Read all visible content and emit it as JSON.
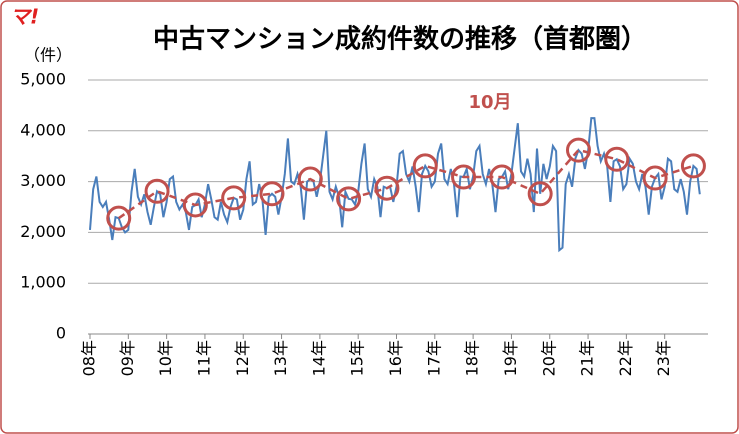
{
  "chart_data": {
    "type": "line",
    "title": "中古マンション成約件数の推移（首都圏）",
    "y_unit_label": "（件）",
    "logo": "マ!",
    "categories": [
      "08年",
      null,
      null,
      null,
      null,
      null,
      null,
      null,
      null,
      null,
      null,
      null,
      "09年",
      null,
      null,
      null,
      null,
      null,
      null,
      null,
      null,
      null,
      null,
      null,
      "10年",
      null,
      null,
      null,
      null,
      null,
      null,
      null,
      null,
      null,
      null,
      null,
      "11年",
      null,
      null,
      null,
      null,
      null,
      null,
      null,
      null,
      null,
      null,
      null,
      "12年",
      null,
      null,
      null,
      null,
      null,
      null,
      null,
      null,
      null,
      null,
      null,
      "13年",
      null,
      null,
      null,
      null,
      null,
      null,
      null,
      null,
      null,
      null,
      null,
      "14年",
      null,
      null,
      null,
      null,
      null,
      null,
      null,
      null,
      null,
      null,
      null,
      "15年",
      null,
      null,
      null,
      null,
      null,
      null,
      null,
      null,
      null,
      null,
      null,
      "16年",
      null,
      null,
      null,
      null,
      null,
      null,
      null,
      null,
      null,
      null,
      null,
      "17年",
      null,
      null,
      null,
      null,
      null,
      null,
      null,
      null,
      null,
      null,
      null,
      "18年",
      null,
      null,
      null,
      null,
      null,
      null,
      null,
      null,
      null,
      null,
      null,
      "19年",
      null,
      null,
      null,
      null,
      null,
      null,
      null,
      null,
      null,
      null,
      null,
      "20年",
      null,
      null,
      null,
      null,
      null,
      null,
      null,
      null,
      null,
      null,
      null,
      "21年",
      null,
      null,
      null,
      null,
      null,
      null,
      null,
      null,
      null,
      null,
      null,
      "22年",
      null,
      null,
      null,
      null,
      null,
      null,
      null,
      null,
      null,
      null,
      null,
      "23年",
      null,
      null,
      null,
      null,
      null,
      null,
      null,
      null,
      null,
      null,
      null
    ],
    "series": [
      {
        "color": "#4a7ebb",
        "values": [
          2050,
          2850,
          3100,
          2600,
          2500,
          2600,
          2250,
          1850,
          2300,
          2280,
          2100,
          2000,
          2050,
          2800,
          3250,
          2700,
          2550,
          2750,
          2400,
          2150,
          2500,
          2810,
          2750,
          2300,
          2600,
          3050,
          3100,
          2600,
          2450,
          2550,
          2400,
          2050,
          2500,
          2540,
          2650,
          2300,
          2550,
          2950,
          2650,
          2300,
          2250,
          2600,
          2350,
          2200,
          2500,
          2680,
          2650,
          2250,
          2450,
          3050,
          3400,
          2550,
          2600,
          2950,
          2650,
          1950,
          2700,
          2760,
          2700,
          2350,
          2700,
          3150,
          3850,
          3000,
          2950,
          3150,
          2900,
          2250,
          3000,
          3050,
          3000,
          2700,
          3000,
          3500,
          4000,
          2800,
          2650,
          2900,
          2700,
          2100,
          2800,
          2660,
          2650,
          2550,
          2800,
          3350,
          3750,
          2850,
          2700,
          3050,
          2900,
          2300,
          2900,
          2870,
          2900,
          2600,
          2900,
          3550,
          3600,
          3150,
          3000,
          3300,
          2900,
          2400,
          3150,
          3310,
          3200,
          2900,
          3000,
          3550,
          3750,
          3050,
          2950,
          3250,
          2950,
          2300,
          3100,
          3090,
          3250,
          2850,
          3100,
          3600,
          3700,
          3150,
          2950,
          3250,
          2950,
          2400,
          3050,
          3090,
          3200,
          2850,
          3150,
          3650,
          4150,
          3200,
          3100,
          3450,
          3150,
          2400,
          3650,
          2760,
          3350,
          3050,
          3300,
          3700,
          3600,
          1650,
          1700,
          2950,
          3150,
          2900,
          3450,
          3620,
          3550,
          3250,
          3600,
          4250,
          4250,
          3700,
          3400,
          3550,
          3300,
          2600,
          3400,
          3440,
          3300,
          2850,
          2950,
          3450,
          3350,
          3000,
          2850,
          3150,
          2900,
          2350,
          2900,
          3070,
          3150,
          2650,
          2900,
          3450,
          3400,
          2850,
          2800,
          3050,
          2800,
          2350,
          3000,
          3310,
          3250,
          2750
        ]
      },
      {
        "name": "10月",
        "color": "#c0504d",
        "style": "dashed-circles",
        "values": [
          null,
          null,
          null,
          null,
          null,
          null,
          null,
          null,
          null,
          2280,
          null,
          null,
          null,
          null,
          null,
          null,
          null,
          null,
          null,
          null,
          null,
          2810,
          null,
          null,
          null,
          null,
          null,
          null,
          null,
          null,
          null,
          null,
          null,
          2540,
          null,
          null,
          null,
          null,
          null,
          null,
          null,
          null,
          null,
          null,
          null,
          2680,
          null,
          null,
          null,
          null,
          null,
          null,
          null,
          null,
          null,
          null,
          null,
          2760,
          null,
          null,
          null,
          null,
          null,
          null,
          null,
          null,
          null,
          null,
          null,
          3050,
          null,
          null,
          null,
          null,
          null,
          null,
          null,
          null,
          null,
          null,
          null,
          2660,
          null,
          null,
          null,
          null,
          null,
          null,
          null,
          null,
          null,
          null,
          null,
          2870,
          null,
          null,
          null,
          null,
          null,
          null,
          null,
          null,
          null,
          null,
          null,
          3310,
          null,
          null,
          null,
          null,
          null,
          null,
          null,
          null,
          null,
          null,
          null,
          3090,
          null,
          null,
          null,
          null,
          null,
          null,
          null,
          null,
          null,
          null,
          null,
          3090,
          null,
          null,
          null,
          null,
          null,
          null,
          null,
          null,
          null,
          null,
          null,
          2760,
          null,
          null,
          null,
          null,
          null,
          null,
          null,
          null,
          null,
          null,
          null,
          3620,
          null,
          null,
          null,
          null,
          null,
          null,
          null,
          null,
          null,
          null,
          null,
          3440,
          null,
          null,
          null,
          null,
          null,
          null,
          null,
          null,
          null,
          null,
          null,
          3070,
          null,
          null,
          null,
          null,
          null,
          null,
          null,
          null,
          null,
          null,
          null,
          3310,
          null,
          null
        ]
      }
    ],
    "ylim": [
      0,
      5000
    ],
    "yticks": [
      0,
      {
        "value": 1000,
        "label": "1,000"
      },
      {
        "value": 2000,
        "label": "2,000"
      },
      {
        "value": 3000,
        "label": "3,000"
      },
      {
        "value": 4000,
        "label": "4,000"
      },
      {
        "value": 5000,
        "label": "5,000"
      }
    ],
    "grid": true
  }
}
